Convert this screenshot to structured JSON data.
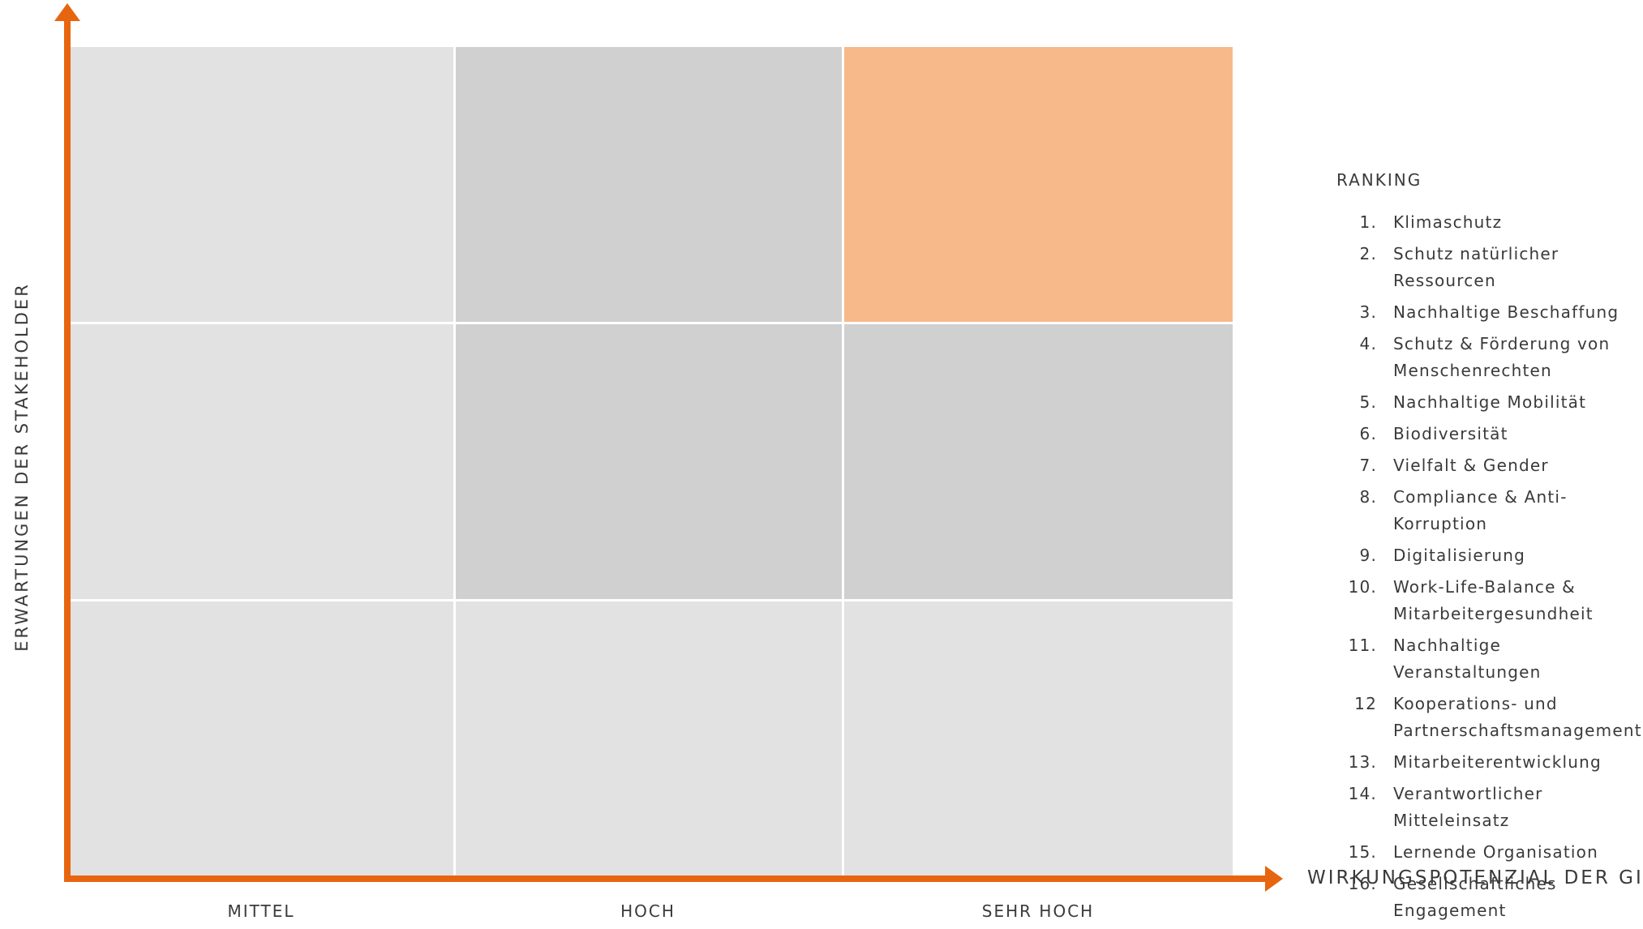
{
  "axes": {
    "y_title": "ERWARTUNGEN DER STAKEHOLDER",
    "x_title": "WIRKUNGSPOTENZIAL DER GIZ",
    "x_ticks": [
      "MITTEL",
      "HOCH",
      "SEHR HOCH"
    ]
  },
  "colors": {
    "axis": "#e8650f",
    "highlight": "#f7b98a",
    "light_grey": "#e2e2e2",
    "dark_grey": "#d0d0d0"
  },
  "matrix": {
    "rows": 3,
    "columns": 3,
    "highlighted_cell": "top-right"
  },
  "ranking": {
    "title": "RANKING",
    "items": [
      {
        "num": "1.",
        "label": "Klimaschutz"
      },
      {
        "num": "2.",
        "label": "Schutz natürlicher Ressourcen"
      },
      {
        "num": "3.",
        "label": "Nachhaltige Beschaffung"
      },
      {
        "num": "4.",
        "label": "Schutz & Förderung von Menschenrechten"
      },
      {
        "num": "5.",
        "label": "Nachhaltige Mobilität"
      },
      {
        "num": "6.",
        "label": "Biodiversität"
      },
      {
        "num": "7.",
        "label": "Vielfalt & Gender"
      },
      {
        "num": "8.",
        "label": "Compliance & Anti-Korruption"
      },
      {
        "num": "9.",
        "label": "Digitalisierung"
      },
      {
        "num": "10.",
        "label": "Work-Life-Balance & Mitarbeitergesundheit"
      },
      {
        "num": "11.",
        "label": "Nachhaltige Veranstaltungen"
      },
      {
        "num": "12",
        "label": "Kooperations- und Partnerschaftsmanagement"
      },
      {
        "num": "13.",
        "label": "Mitarbeiterentwicklung"
      },
      {
        "num": "14.",
        "label": "Verantwortlicher Mitteleinsatz"
      },
      {
        "num": "15.",
        "label": "Lernende Organisation"
      },
      {
        "num": "16.",
        "label": "Gesellschaftliches Engagement"
      }
    ]
  }
}
